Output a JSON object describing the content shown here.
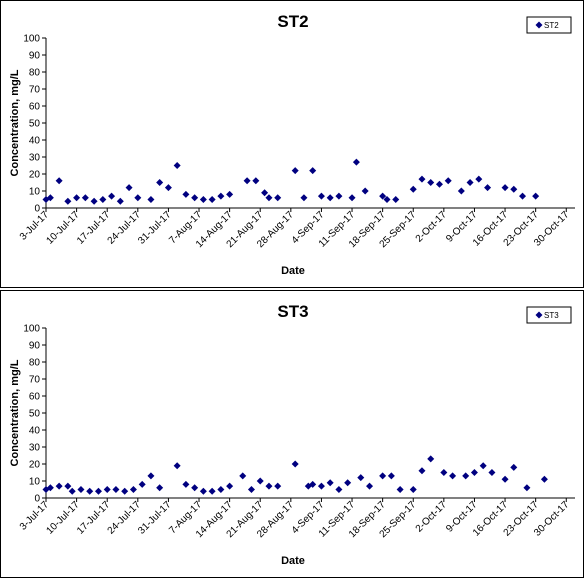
{
  "chart_data": [
    {
      "type": "scatter",
      "title": "ST2",
      "xlabel": "Date",
      "ylabel": "Concentration, mg/L",
      "ylim": [
        0,
        100
      ],
      "yticks": [
        0,
        10,
        20,
        30,
        40,
        50,
        60,
        70,
        80,
        90,
        100
      ],
      "xlim": [
        "2017-07-03",
        "2017-11-01"
      ],
      "xticks": [
        "3-Jul-17",
        "10-Jul-17",
        "17-Jul-17",
        "24-Jul-17",
        "31-Jul-17",
        "7-Aug-17",
        "14-Aug-17",
        "21-Aug-17",
        "28-Aug-17",
        "4-Sep-17",
        "11-Sep-17",
        "18-Sep-17",
        "25-Sep-17",
        "2-Oct-17",
        "9-Oct-17",
        "16-Oct-17",
        "23-Oct-17",
        "30-Oct-17"
      ],
      "grid": false,
      "legend": "top-right",
      "marker": "diamond",
      "color": "#000080",
      "series": [
        {
          "name": "ST2",
          "points": [
            [
              "2017-07-03",
              5
            ],
            [
              "2017-07-04",
              6
            ],
            [
              "2017-07-06",
              16
            ],
            [
              "2017-07-08",
              4
            ],
            [
              "2017-07-10",
              6
            ],
            [
              "2017-07-12",
              6
            ],
            [
              "2017-07-14",
              4
            ],
            [
              "2017-07-16",
              5
            ],
            [
              "2017-07-18",
              7
            ],
            [
              "2017-07-20",
              4
            ],
            [
              "2017-07-22",
              12
            ],
            [
              "2017-07-24",
              6
            ],
            [
              "2017-07-27",
              5
            ],
            [
              "2017-07-29",
              15
            ],
            [
              "2017-07-31",
              12
            ],
            [
              "2017-08-02",
              25
            ],
            [
              "2017-08-04",
              8
            ],
            [
              "2017-08-06",
              6
            ],
            [
              "2017-08-08",
              5
            ],
            [
              "2017-08-10",
              5
            ],
            [
              "2017-08-12",
              7
            ],
            [
              "2017-08-14",
              8
            ],
            [
              "2017-08-18",
              16
            ],
            [
              "2017-08-20",
              16
            ],
            [
              "2017-08-22",
              9
            ],
            [
              "2017-08-23",
              6
            ],
            [
              "2017-08-25",
              6
            ],
            [
              "2017-08-29",
              22
            ],
            [
              "2017-08-31",
              6
            ],
            [
              "2017-09-02",
              22
            ],
            [
              "2017-09-04",
              7
            ],
            [
              "2017-09-06",
              6
            ],
            [
              "2017-09-08",
              7
            ],
            [
              "2017-09-11",
              6
            ],
            [
              "2017-09-12",
              27
            ],
            [
              "2017-09-14",
              10
            ],
            [
              "2017-09-18",
              7
            ],
            [
              "2017-09-19",
              5
            ],
            [
              "2017-09-21",
              5
            ],
            [
              "2017-09-25",
              11
            ],
            [
              "2017-09-27",
              17
            ],
            [
              "2017-09-29",
              15
            ],
            [
              "2017-10-01",
              14
            ],
            [
              "2017-10-03",
              16
            ],
            [
              "2017-10-06",
              10
            ],
            [
              "2017-10-08",
              15
            ],
            [
              "2017-10-10",
              17
            ],
            [
              "2017-10-12",
              12
            ],
            [
              "2017-10-16",
              12
            ],
            [
              "2017-10-18",
              11
            ],
            [
              "2017-10-20",
              7
            ],
            [
              "2017-10-23",
              7
            ]
          ]
        }
      ]
    },
    {
      "type": "scatter",
      "title": "ST3",
      "xlabel": "Date",
      "ylabel": "Concentration, mg/L",
      "ylim": [
        0,
        100
      ],
      "yticks": [
        0,
        10,
        20,
        30,
        40,
        50,
        60,
        70,
        80,
        90,
        100
      ],
      "xlim": [
        "2017-07-03",
        "2017-11-01"
      ],
      "xticks": [
        "3-Jul-17",
        "10-Jul-17",
        "17-Jul-17",
        "24-Jul-17",
        "31-Jul-17",
        "7-Aug-17",
        "14-Aug-17",
        "21-Aug-17",
        "28-Aug-17",
        "4-Sep-17",
        "11-Sep-17",
        "18-Sep-17",
        "25-Sep-17",
        "2-Oct-17",
        "9-Oct-17",
        "16-Oct-17",
        "23-Oct-17",
        "30-Oct-17"
      ],
      "grid": false,
      "legend": "top-right",
      "marker": "diamond",
      "color": "#000080",
      "series": [
        {
          "name": "ST3",
          "points": [
            [
              "2017-07-03",
              5
            ],
            [
              "2017-07-04",
              6
            ],
            [
              "2017-07-06",
              7
            ],
            [
              "2017-07-08",
              7
            ],
            [
              "2017-07-09",
              4
            ],
            [
              "2017-07-11",
              5
            ],
            [
              "2017-07-13",
              4
            ],
            [
              "2017-07-15",
              4
            ],
            [
              "2017-07-17",
              5
            ],
            [
              "2017-07-19",
              5
            ],
            [
              "2017-07-21",
              4
            ],
            [
              "2017-07-23",
              5
            ],
            [
              "2017-07-25",
              8
            ],
            [
              "2017-07-27",
              13
            ],
            [
              "2017-07-29",
              6
            ],
            [
              "2017-08-02",
              19
            ],
            [
              "2017-08-04",
              8
            ],
            [
              "2017-08-06",
              6
            ],
            [
              "2017-08-08",
              4
            ],
            [
              "2017-08-10",
              4
            ],
            [
              "2017-08-12",
              5
            ],
            [
              "2017-08-14",
              7
            ],
            [
              "2017-08-17",
              13
            ],
            [
              "2017-08-19",
              5
            ],
            [
              "2017-08-21",
              10
            ],
            [
              "2017-08-23",
              7
            ],
            [
              "2017-08-25",
              7
            ],
            [
              "2017-08-29",
              20
            ],
            [
              "2017-09-01",
              7
            ],
            [
              "2017-09-02",
              8
            ],
            [
              "2017-09-04",
              7
            ],
            [
              "2017-09-06",
              9
            ],
            [
              "2017-09-08",
              5
            ],
            [
              "2017-09-10",
              9
            ],
            [
              "2017-09-13",
              12
            ],
            [
              "2017-09-15",
              7
            ],
            [
              "2017-09-18",
              13
            ],
            [
              "2017-09-20",
              13
            ],
            [
              "2017-09-22",
              5
            ],
            [
              "2017-09-25",
              5
            ],
            [
              "2017-09-27",
              16
            ],
            [
              "2017-09-29",
              23
            ],
            [
              "2017-10-02",
              15
            ],
            [
              "2017-10-04",
              13
            ],
            [
              "2017-10-07",
              13
            ],
            [
              "2017-10-09",
              15
            ],
            [
              "2017-10-11",
              19
            ],
            [
              "2017-10-13",
              15
            ],
            [
              "2017-10-16",
              11
            ],
            [
              "2017-10-18",
              18
            ],
            [
              "2017-10-21",
              6
            ],
            [
              "2017-10-25",
              11
            ]
          ]
        }
      ]
    }
  ]
}
